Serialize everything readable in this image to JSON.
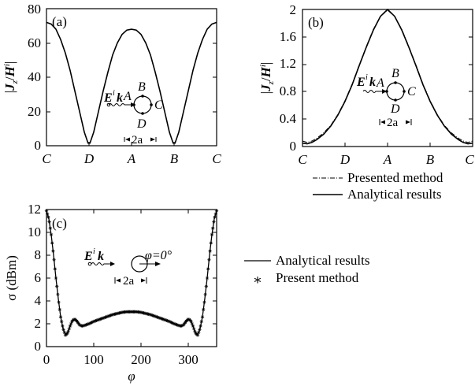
{
  "chart_data": [
    {
      "id": "a",
      "type": "line",
      "panel_label": "(a)",
      "ylabel": "|J_z/H^i|",
      "ylim": [
        0,
        80
      ],
      "yticks": [
        0,
        20,
        40,
        60,
        80
      ],
      "xtick_labels": [
        "C",
        "D",
        "A",
        "B",
        "C"
      ],
      "x_positions_deg": [
        0,
        90,
        180,
        270,
        360
      ],
      "series": [
        {
          "style": "solid",
          "points": [
            [
              0,
              72
            ],
            [
              10,
              71
            ],
            [
              20,
              68
            ],
            [
              30,
              62
            ],
            [
              40,
              54
            ],
            [
              50,
              44
            ],
            [
              60,
              32
            ],
            [
              70,
              20
            ],
            [
              80,
              8
            ],
            [
              88,
              1.5
            ],
            [
              92,
              1.5
            ],
            [
              100,
              8
            ],
            [
              110,
              20
            ],
            [
              120,
              32
            ],
            [
              130,
              43
            ],
            [
              140,
              53
            ],
            [
              150,
              60
            ],
            [
              160,
              65
            ],
            [
              170,
              67.5
            ],
            [
              180,
              68
            ],
            [
              190,
              67.5
            ],
            [
              200,
              65
            ],
            [
              210,
              60
            ],
            [
              220,
              53
            ],
            [
              230,
              43
            ],
            [
              240,
              32
            ],
            [
              250,
              20
            ],
            [
              260,
              8
            ],
            [
              268,
              1.5
            ],
            [
              272,
              1.5
            ],
            [
              280,
              8
            ],
            [
              290,
              20
            ],
            [
              300,
              32
            ],
            [
              310,
              44
            ],
            [
              320,
              54
            ],
            [
              330,
              62
            ],
            [
              340,
              68
            ],
            [
              350,
              71
            ],
            [
              360,
              72
            ]
          ]
        }
      ],
      "inset": {
        "incident_labels": [
          "E",
          "i",
          "k"
        ],
        "points": [
          "A",
          "B",
          "C",
          "D"
        ],
        "dimension": "2a"
      }
    },
    {
      "id": "b",
      "type": "line",
      "panel_label": "(b)",
      "ylabel": "|J_z/H^i|",
      "ylim": [
        0,
        2.0
      ],
      "yticks": [
        "0",
        "0.4",
        "0.8",
        "1.2",
        "1.6",
        "2"
      ],
      "xtick_labels": [
        "C",
        "D",
        "A",
        "B",
        "C"
      ],
      "x_positions_deg": [
        0,
        90,
        180,
        270,
        360
      ],
      "series": [
        {
          "name": "Analytical results",
          "style": "solid",
          "points": [
            [
              0,
              0.05
            ],
            [
              10,
              0.04
            ],
            [
              20,
              0.06
            ],
            [
              30,
              0.1
            ],
            [
              45,
              0.18
            ],
            [
              60,
              0.3
            ],
            [
              75,
              0.46
            ],
            [
              90,
              0.66
            ],
            [
              105,
              0.9
            ],
            [
              120,
              1.18
            ],
            [
              135,
              1.45
            ],
            [
              150,
              1.7
            ],
            [
              165,
              1.9
            ],
            [
              180,
              2.0
            ],
            [
              195,
              1.9
            ],
            [
              210,
              1.7
            ],
            [
              225,
              1.45
            ],
            [
              240,
              1.18
            ],
            [
              255,
              0.9
            ],
            [
              270,
              0.66
            ],
            [
              285,
              0.46
            ],
            [
              300,
              0.3
            ],
            [
              315,
              0.18
            ],
            [
              330,
              0.1
            ],
            [
              340,
              0.06
            ],
            [
              350,
              0.04
            ],
            [
              360,
              0.05
            ]
          ]
        },
        {
          "name": "Presented method",
          "style": "dashdot",
          "points": [
            [
              0,
              0.08
            ],
            [
              10,
              0.06
            ],
            [
              20,
              0.08
            ],
            [
              30,
              0.12
            ],
            [
              45,
              0.2
            ],
            [
              60,
              0.31
            ],
            [
              75,
              0.47
            ],
            [
              90,
              0.67
            ],
            [
              105,
              0.91
            ],
            [
              120,
              1.19
            ],
            [
              135,
              1.46
            ],
            [
              150,
              1.71
            ],
            [
              165,
              1.9
            ],
            [
              180,
              1.99
            ],
            [
              195,
              1.9
            ],
            [
              210,
              1.71
            ],
            [
              225,
              1.46
            ],
            [
              240,
              1.19
            ],
            [
              255,
              0.91
            ],
            [
              270,
              0.67
            ],
            [
              285,
              0.47
            ],
            [
              300,
              0.31
            ],
            [
              315,
              0.2
            ],
            [
              330,
              0.12
            ],
            [
              340,
              0.08
            ],
            [
              350,
              0.06
            ],
            [
              360,
              0.08
            ]
          ]
        }
      ],
      "legend": [
        "Presented method",
        "Analytical results"
      ],
      "inset": {
        "incident_labels": [
          "E",
          "i",
          "k"
        ],
        "points": [
          "A",
          "B",
          "C",
          "D"
        ],
        "dimension": "2a"
      }
    },
    {
      "id": "c",
      "type": "line",
      "panel_label": "(c)",
      "xlabel": "φ",
      "ylabel": "σ (dBm)",
      "xlim": [
        0,
        360
      ],
      "ylim": [
        0,
        12
      ],
      "xticks": [
        0,
        100,
        200,
        300
      ],
      "yticks": [
        0,
        2,
        4,
        6,
        8,
        10,
        12
      ],
      "series": [
        {
          "name": "Analytical results",
          "style": "solid",
          "points": [
            [
              0,
              11.9
            ],
            [
              5,
              11.2
            ],
            [
              10,
              9.8
            ],
            [
              15,
              8.0
            ],
            [
              20,
              6.0
            ],
            [
              25,
              4.2
            ],
            [
              30,
              2.6
            ],
            [
              35,
              1.6
            ],
            [
              40,
              1.0
            ],
            [
              45,
              1.2
            ],
            [
              50,
              1.8
            ],
            [
              55,
              2.3
            ],
            [
              60,
              2.4
            ],
            [
              65,
              2.2
            ],
            [
              70,
              1.9
            ],
            [
              75,
              1.8
            ],
            [
              80,
              1.85
            ],
            [
              90,
              2.0
            ],
            [
              100,
              2.2
            ],
            [
              110,
              2.35
            ],
            [
              120,
              2.5
            ],
            [
              130,
              2.65
            ],
            [
              140,
              2.8
            ],
            [
              150,
              2.9
            ],
            [
              160,
              3.0
            ],
            [
              170,
              3.05
            ],
            [
              180,
              3.05
            ],
            [
              190,
              3.05
            ],
            [
              200,
              3.0
            ],
            [
              210,
              2.9
            ],
            [
              220,
              2.8
            ],
            [
              230,
              2.65
            ],
            [
              240,
              2.5
            ],
            [
              250,
              2.35
            ],
            [
              260,
              2.2
            ],
            [
              270,
              2.0
            ],
            [
              280,
              1.85
            ],
            [
              285,
              1.8
            ],
            [
              290,
              1.9
            ],
            [
              295,
              2.2
            ],
            [
              300,
              2.4
            ],
            [
              305,
              2.3
            ],
            [
              310,
              1.8
            ],
            [
              315,
              1.2
            ],
            [
              320,
              1.0
            ],
            [
              325,
              1.6
            ],
            [
              330,
              2.6
            ],
            [
              335,
              4.2
            ],
            [
              340,
              6.0
            ],
            [
              345,
              8.0
            ],
            [
              350,
              9.8
            ],
            [
              355,
              11.2
            ],
            [
              360,
              11.9
            ]
          ]
        },
        {
          "name": "Present method",
          "style": "star-markers",
          "marker_step_deg": 2
        }
      ],
      "legend": [
        "Analytical results",
        "Present method"
      ],
      "inset": {
        "incident_labels": [
          "E",
          "i",
          "k"
        ],
        "angle_label": "φ=0°",
        "dimension": "2a"
      }
    }
  ]
}
